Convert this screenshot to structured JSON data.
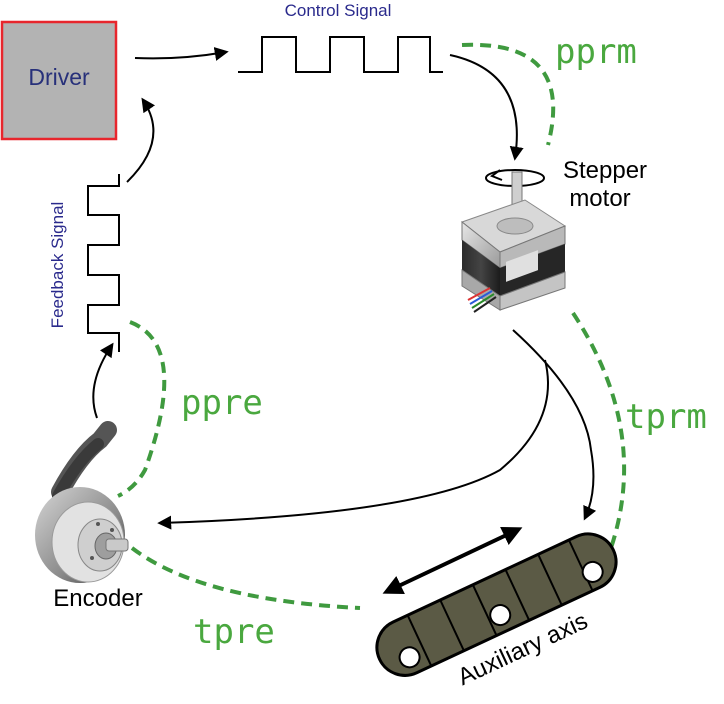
{
  "driver": {
    "label": "Driver"
  },
  "signals": {
    "control": "Control Signal",
    "feedback": "Feedback Signal"
  },
  "motor": {
    "label_line1": "Stepper",
    "label_line2": "motor"
  },
  "encoder": {
    "label": "Encoder"
  },
  "axis": {
    "label": "Auxiliary axis"
  },
  "links": {
    "pprm": "pprm",
    "ppre": "ppre",
    "tprm": "tprm",
    "tpre": "tpre"
  },
  "colors": {
    "driver_fill": "#b3b3b3",
    "driver_border": "#e8262d",
    "signal_text": "#2a2a8c",
    "dashed_green": "#3f9a3f",
    "label_green": "#4aa83f",
    "belt": "#5b5a45"
  }
}
